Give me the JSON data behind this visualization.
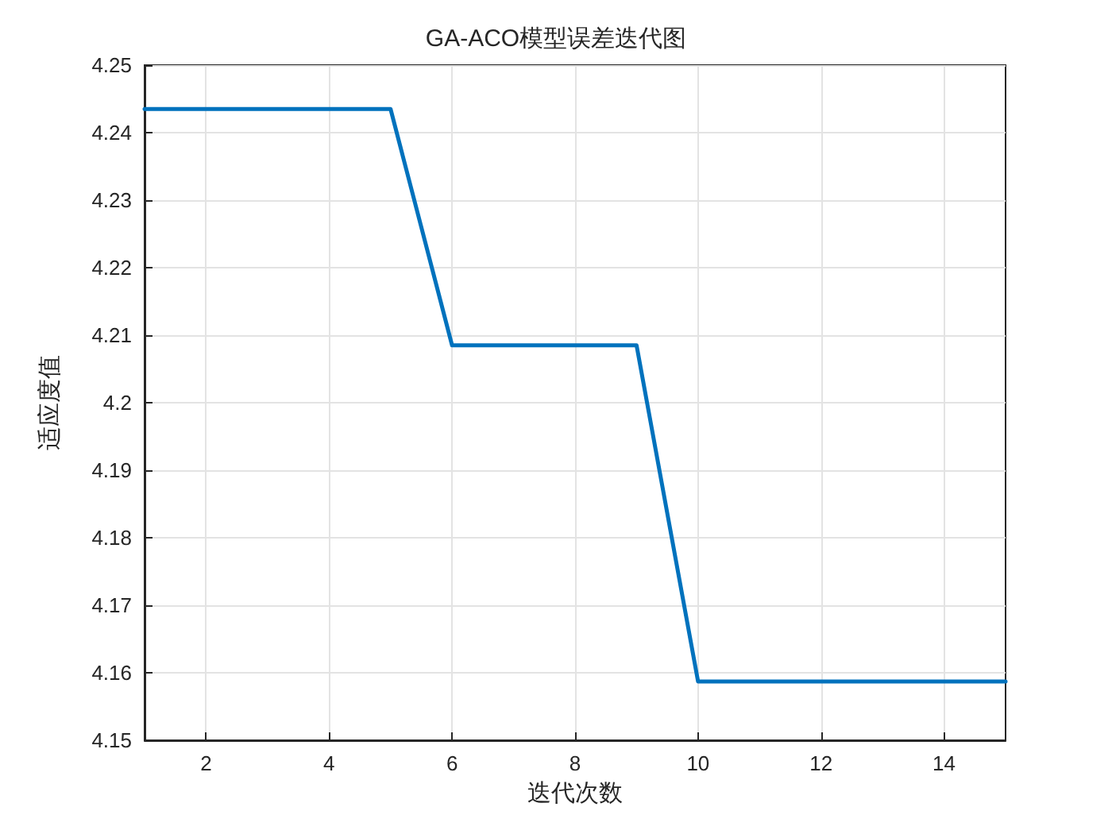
{
  "chart_data": {
    "type": "line",
    "title": "GA-ACO模型误差迭代图",
    "xlabel": "迭代次数",
    "ylabel": "适应度值",
    "x": [
      1,
      2,
      3,
      4,
      5,
      6,
      7,
      8,
      9,
      10,
      11,
      12,
      13,
      14,
      15
    ],
    "values": [
      4.2435,
      4.2435,
      4.2435,
      4.2435,
      4.2435,
      4.2085,
      4.2085,
      4.2085,
      4.2085,
      4.1587,
      4.1587,
      4.1587,
      4.1587,
      4.1587,
      4.1587
    ],
    "color": "#0072bd",
    "xlim": [
      1,
      15
    ],
    "ylim": [
      4.15,
      4.25
    ],
    "xticks": [
      2,
      4,
      6,
      8,
      10,
      12,
      14
    ],
    "yticks": [
      4.15,
      4.16,
      4.17,
      4.18,
      4.19,
      4.2,
      4.21,
      4.22,
      4.23,
      4.24,
      4.25
    ],
    "grid": true,
    "line_style": "solid"
  }
}
